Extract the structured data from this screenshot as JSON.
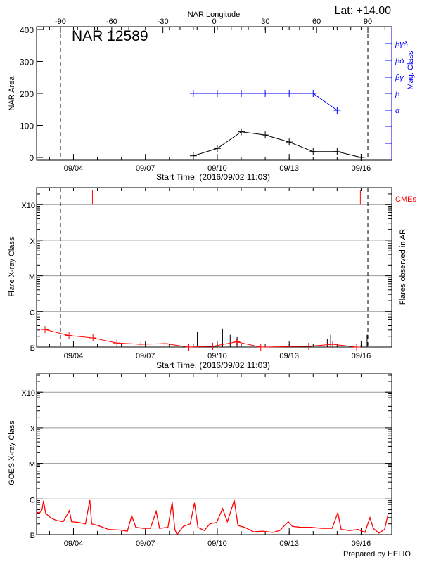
{
  "header": {
    "lat_label": "Lat: +14.00"
  },
  "footer": {
    "credit": "Prepared by HELIO"
  },
  "colors": {
    "axis": "#000000",
    "mag_class": "#0000ff",
    "flare": "#ff0000",
    "cme": "#ff0000",
    "grid": "#999999",
    "goes": "#ff0000"
  },
  "chart_data": [
    {
      "type": "line",
      "title": "NAR 12589",
      "xlabel": "Start Time: (2016/09/02 11:03)",
      "ylabel": "NAR Area",
      "y2label": "Mag. Class",
      "top_xlabel": "NAR Longitude",
      "x_ticks": [
        "09/04",
        "09/07",
        "09/10",
        "09/13",
        "09/16"
      ],
      "top_x_ticks": [
        "-90",
        "-60",
        "-30",
        "0",
        "30",
        "60",
        "90"
      ],
      "y_ticks": [
        "0",
        "100",
        "200",
        "300",
        "400"
      ],
      "ylim": [
        0,
        400
      ],
      "y2_ticks": [
        "α",
        "β",
        "βγ",
        "βδ",
        "βγδ"
      ],
      "limb_longitudes": [
        -90,
        90
      ],
      "area_series": {
        "x": [
          "09/09 00:00",
          "09/10 00:00",
          "09/11 00:00",
          "09/12 00:00",
          "09/13 00:00",
          "09/14 00:00",
          "09/15 00:00",
          "09/16 00:00"
        ],
        "values": [
          5,
          28,
          80,
          70,
          48,
          18,
          18,
          0
        ]
      },
      "mag_class_series": {
        "x": [
          "09/09 00:00",
          "09/10 00:00",
          "09/11 00:00",
          "09/12 00:00",
          "09/13 00:00",
          "09/14 00:00",
          "09/15 00:00"
        ],
        "values": [
          "β",
          "β",
          "β",
          "β",
          "β",
          "β",
          "α"
        ]
      }
    },
    {
      "type": "line",
      "xlabel": "Start Time: (2016/09/02 11:03)",
      "ylabel": "Flare X-ray Class",
      "y2label": "Flares observed in AR",
      "cme_label": "CMEs",
      "y_scale": "log",
      "grid": true,
      "x_ticks": [
        "09/04",
        "09/07",
        "09/10",
        "09/13",
        "09/16"
      ],
      "y_ticks": [
        {
          "label": "B",
          "flux_wm2": 1e-07
        },
        {
          "label": "C",
          "flux_wm2": 1e-06
        },
        {
          "label": "M",
          "flux_wm2": 1e-05
        },
        {
          "label": "X",
          "flux_wm2": 0.0001
        },
        {
          "label": "X10",
          "flux_wm2": 0.001
        }
      ],
      "daily_series": {
        "x": [
          "09/02 19:30",
          "09/03 19:30",
          "09/04 19:30",
          "09/05 19:30",
          "09/06 19:30",
          "09/07 19:30",
          "09/08 19:30",
          "09/09 19:30",
          "09/10 19:30",
          "09/11 19:30",
          "09/13 19:30",
          "09/14 19:30",
          "09/15 19:30"
        ],
        "flux_wm2": [
          3.1e-07,
          2.1e-07,
          1.8e-07,
          1.3e-07,
          1.2e-07,
          1.25e-07,
          1e-07,
          1.05e-07,
          1.4e-07,
          1e-07,
          1.05e-07,
          1.2e-07,
          1e-07
        ]
      },
      "flares": [
        {
          "time": "09/09 04:00",
          "flux_wm2": 2.6e-07
        },
        {
          "time": "09/10 05:15",
          "flux_wm2": 3.3e-07
        },
        {
          "time": "09/10 12:55",
          "flux_wm2": 2.2e-07
        },
        {
          "time": "09/10 19:50",
          "flux_wm2": 1.9e-07
        },
        {
          "time": "09/14 14:10",
          "flux_wm2": 1.7e-07
        },
        {
          "time": "09/14 17:30",
          "flux_wm2": 2.2e-07
        },
        {
          "time": "09/16 06:00",
          "flux_wm2": 2.2e-07
        }
      ],
      "cmes": [
        "09/04 19:00",
        "09/15 23:15"
      ]
    },
    {
      "type": "line",
      "ylabel": "GOES X-ray Class",
      "y_scale": "log",
      "grid": true,
      "x_ticks": [
        "09/04",
        "09/07",
        "09/10",
        "09/13",
        "09/16"
      ],
      "y_ticks": [
        {
          "label": "B",
          "flux_wm2": 1e-07
        },
        {
          "label": "C",
          "flux_wm2": 1e-06
        },
        {
          "label": "M",
          "flux_wm2": 1e-05
        },
        {
          "label": "X",
          "flux_wm2": 0.0001
        },
        {
          "label": "X10",
          "flux_wm2": 0.001
        }
      ],
      "series": {
        "x": [
          "09/02 11:03",
          "09/02 13:55",
          "09/02 16:30",
          "09/02 18:00",
          "09/02 20:10",
          "09/03 01:00",
          "09/03 06:40",
          "09/03 13:40",
          "09/03 19:55",
          "09/03 22:05",
          "09/04 05:00",
          "09/04 12:00",
          "09/04 16:20",
          "09/04 18:15",
          "09/05 00:40",
          "09/05 11:00",
          "09/05 21:35",
          "09/06 06:00",
          "09/06 10:20",
          "09/06 14:25",
          "09/06 22:05",
          "09/07 05:00",
          "09/07 10:50",
          "09/07 14:10",
          "09/07 22:35",
          "09/08 02:50",
          "09/08 05:30",
          "09/08 07:40",
          "09/08 13:55",
          "09/08 20:55",
          "09/09 01:10",
          "09/09 04:35",
          "09/09 11:00",
          "09/09 16:35",
          "09/09 23:30",
          "09/10 05:15",
          "09/10 10:05",
          "09/10 17:00",
          "09/10 20:40",
          "09/11 03:35",
          "09/11 12:00",
          "09/11 21:10",
          "09/12 07:25",
          "09/12 14:35",
          "09/12 23:00",
          "09/13 03:10",
          "09/13 11:30",
          "09/13 22:05",
          "09/14 08:40",
          "09/14 19:00",
          "09/15 00:40",
          "09/15 04:05",
          "09/15 12:30",
          "09/15 20:55",
          "09/16 03:50",
          "09/16 08:50",
          "09/16 12:15",
          "09/16 17:45",
          "09/16 23:30",
          "09/17 03:10"
        ],
        "flux_wm2": [
          4.3e-07,
          4e-07,
          5e-07,
          8.9e-07,
          4e-07,
          3e-07,
          2.5e-07,
          2.3e-07,
          4.7e-07,
          2.3e-07,
          2.2e-07,
          2e-07,
          9.3e-07,
          2e-07,
          1.8e-07,
          1.4e-07,
          1.35e-07,
          1.25e-07,
          3.4e-07,
          1.6e-07,
          1.5e-07,
          1.5e-07,
          4.5e-07,
          1.5e-07,
          1.6e-07,
          8.1e-07,
          1.4e-07,
          1e-07,
          1.7e-07,
          2e-07,
          7.8e-07,
          1.6e-07,
          1.3e-07,
          2e-07,
          2.2e-07,
          5.4e-07,
          2.3e-07,
          9.3e-07,
          1.8e-07,
          1.6e-07,
          1.2e-07,
          1.25e-07,
          1.15e-07,
          1.3e-07,
          2.3e-07,
          1.7e-07,
          1.6e-07,
          1.6e-07,
          1.5e-07,
          1.5e-07,
          4.1e-07,
          1.4e-07,
          1.3e-07,
          1.4e-07,
          1.15e-07,
          3e-07,
          1.5e-07,
          1.1e-07,
          1.4e-07,
          3.9e-07
        ]
      }
    }
  ]
}
